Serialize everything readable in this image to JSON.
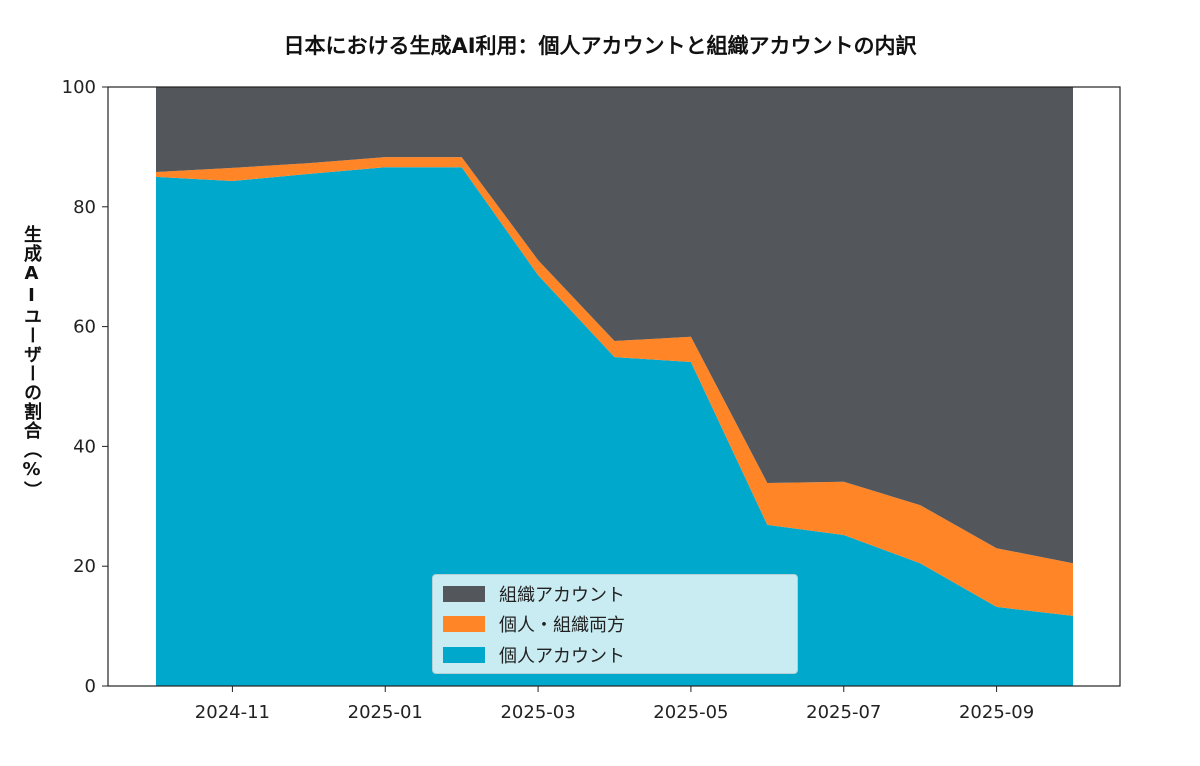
{
  "chart_data": {
    "type": "area",
    "stacked": true,
    "title": "日本における生成AI利用：個人アカウントと組織アカウントの内訳",
    "xlabel": "",
    "ylabel": "生成AIユーザーの割合（%）",
    "x": [
      "2024-10",
      "2024-11",
      "2024-12",
      "2025-01",
      "2025-02",
      "2025-03",
      "2025-04",
      "2025-05",
      "2025-06",
      "2025-07",
      "2025-08",
      "2025-09",
      "2025-10"
    ],
    "x_tick_labels": [
      "2024-11",
      "2025-01",
      "2025-03",
      "2025-05",
      "2025-07",
      "2025-09"
    ],
    "y_ticks": [
      0,
      20,
      40,
      60,
      80,
      100
    ],
    "ylim": [
      0,
      100
    ],
    "grid": false,
    "legend_position": "bottom-center",
    "series": [
      {
        "name": "個人アカウント",
        "color": "#00a8cc",
        "values": [
          85.0,
          84.3,
          85.5,
          86.6,
          86.6,
          68.6,
          54.9,
          54.1,
          26.9,
          25.2,
          20.5,
          13.2,
          11.7
        ]
      },
      {
        "name": "個人・組織両方",
        "color": "#ff8526",
        "values": [
          0.8,
          2.2,
          1.8,
          1.7,
          1.7,
          2.5,
          2.7,
          4.2,
          7.0,
          8.9,
          9.7,
          9.8,
          8.8
        ]
      },
      {
        "name": "組織アカウント",
        "color": "#53565b",
        "values": [
          14.2,
          13.5,
          12.7,
          11.7,
          11.7,
          28.9,
          42.4,
          41.7,
          66.1,
          65.9,
          69.8,
          77.0,
          79.5
        ]
      }
    ],
    "legend_order": [
      2,
      1,
      0
    ]
  }
}
